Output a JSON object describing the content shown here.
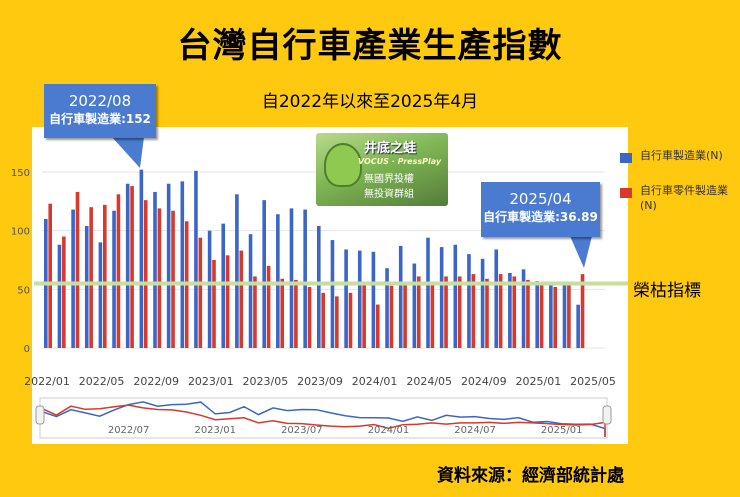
{
  "title": "台灣自行車產業生產指數",
  "subtitle": "自2022年以來至2025年4月",
  "source": "資料來源：經濟部統計處",
  "badge": {
    "line1": "井底之蛙",
    "line2": "VOCUS · PressPlay",
    "line3": "無國界投權",
    "line4": "無投資群組"
  },
  "colors": {
    "bicycle": "#3a66c8",
    "parts": "#d8392b",
    "boom_line": "#c7dea0",
    "callout": "#4a7bd0"
  },
  "callouts": [
    {
      "date": "2022/08",
      "label": "自行車製造業:152"
    },
    {
      "date": "2025/04",
      "label": "自行車製造業:36.89"
    }
  ],
  "boom_label": "榮枯指標",
  "chart_data": {
    "type": "bar",
    "title": "台灣自行車產業生產指數",
    "ylim": [
      0,
      170
    ],
    "yticks": [
      0,
      50,
      100,
      150
    ],
    "boom_threshold": 55,
    "x": [
      "2022/01",
      "2022/02",
      "2022/03",
      "2022/04",
      "2022/05",
      "2022/06",
      "2022/07",
      "2022/08",
      "2022/09",
      "2022/10",
      "2022/11",
      "2022/12",
      "2023/01",
      "2023/02",
      "2023/03",
      "2023/04",
      "2023/05",
      "2023/06",
      "2023/07",
      "2023/08",
      "2023/09",
      "2023/10",
      "2023/11",
      "2023/12",
      "2024/01",
      "2024/02",
      "2024/03",
      "2024/04",
      "2024/05",
      "2024/06",
      "2024/07",
      "2024/08",
      "2024/09",
      "2024/10",
      "2024/11",
      "2024/12",
      "2025/01",
      "2025/02",
      "2025/03",
      "2025/04"
    ],
    "x_tick_labels": [
      "2022/01",
      "2022/05",
      "2022/09",
      "2023/01",
      "2023/05",
      "2023/09",
      "2024/01",
      "2024/05",
      "2024/09",
      "2025/01",
      "2025/05"
    ],
    "navigator_labels": [
      "2022/07",
      "2023/01",
      "2023/07",
      "2024/01",
      "2024/07",
      "2025/01"
    ],
    "series": [
      {
        "name": "自行車製造業(N)",
        "values": [
          110,
          88,
          118,
          104,
          90,
          117,
          140,
          152,
          133,
          140,
          142,
          151,
          100,
          106,
          131,
          97,
          126,
          114,
          119,
          118,
          104,
          92,
          84,
          83,
          82,
          68,
          87,
          72,
          94,
          86,
          88,
          80,
          76,
          84,
          64,
          67,
          57,
          55,
          56,
          36.89
        ]
      },
      {
        "name": "自行車零件製造業(N)",
        "values": [
          123,
          95,
          133,
          120,
          122,
          131,
          138,
          126,
          119,
          117,
          108,
          94,
          75,
          79,
          83,
          61,
          70,
          59,
          58,
          52,
          47,
          44,
          47,
          54,
          37,
          53,
          55,
          61,
          56,
          61,
          61,
          63,
          59,
          63,
          61,
          58,
          54,
          52,
          54,
          63
        ]
      }
    ]
  }
}
